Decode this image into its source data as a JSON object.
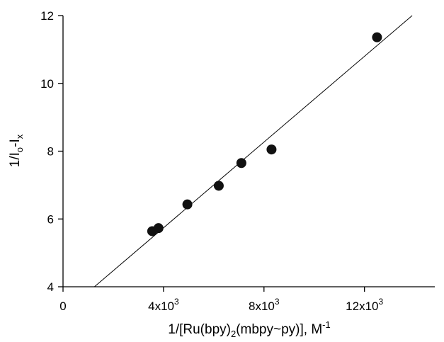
{
  "chart_data": {
    "type": "scatter",
    "xlabel": {
      "base": "1/[Ru(bpy)",
      "sub": "2",
      "rest": "(mbpy~py)], M",
      "sup": "-1"
    },
    "ylabel": {
      "base": "1/I",
      "sub1": "o",
      "mid": "-I",
      "sub2": "x"
    },
    "xlim": [
      0,
      14800
    ],
    "ylim": [
      4,
      12
    ],
    "x_ticks": [
      {
        "value": 0,
        "mantissa": "0",
        "exponent": ""
      },
      {
        "value": 4000,
        "mantissa": "4x10",
        "exponent": "3"
      },
      {
        "value": 8000,
        "mantissa": "8x10",
        "exponent": "3"
      },
      {
        "value": 12000,
        "mantissa": "12x10",
        "exponent": "3"
      }
    ],
    "y_ticks": [
      4,
      6,
      8,
      10,
      12
    ],
    "points": [
      {
        "x": 3550,
        "y": 5.64
      },
      {
        "x": 3800,
        "y": 5.73
      },
      {
        "x": 4950,
        "y": 6.43
      },
      {
        "x": 6200,
        "y": 6.98
      },
      {
        "x": 7100,
        "y": 7.65
      },
      {
        "x": 8300,
        "y": 8.05
      },
      {
        "x": 12500,
        "y": 11.36
      }
    ],
    "fit_line": {
      "x": [
        1250,
        13900
      ],
      "y": [
        4.0,
        12.0
      ]
    },
    "grid": false,
    "marker_color": "#111111",
    "line_color": "#000000"
  }
}
